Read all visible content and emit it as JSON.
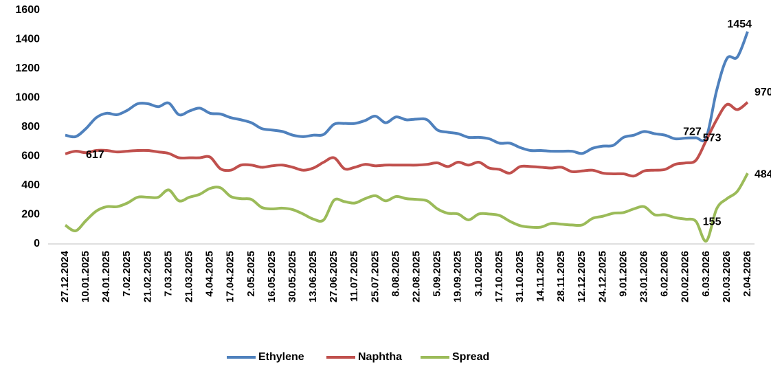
{
  "chart_data": {
    "type": "line",
    "categories": [
      "27.12.2024",
      null,
      "10.01.2025",
      null,
      "24.01.2025",
      null,
      "7.02.2025",
      null,
      "21.02.2025",
      null,
      "7.03.2025",
      null,
      "21.03.2025",
      null,
      "4.04.2025",
      null,
      "17.04.2025",
      null,
      "2.05.2025",
      null,
      "16.05.2025",
      null,
      "30.05.2025",
      null,
      "13.06.2025",
      null,
      "27.06.2025",
      null,
      "11.07.2025",
      null,
      "25.07.2025",
      null,
      "8.08.2025",
      null,
      "22.08.2025",
      null,
      "5.09.2025",
      null,
      "19.09.2025",
      null,
      "3.10.2025",
      null,
      "17.10.2025",
      null,
      "31.10.2025",
      null,
      "14.11.2025",
      null,
      "28.11.2025",
      null,
      "12.12.2025",
      null,
      "24.12.2025",
      null,
      "9.01.2026",
      null,
      "23.01.2026",
      null,
      "6.02.2026",
      null,
      "20.02.2026",
      null,
      "6.03.2026",
      null,
      "20.03.2026",
      null,
      "2.04.2026"
    ],
    "series": [
      {
        "name": "Ethylene",
        "color": "#4f81bd",
        "labeled": [
          61,
          66
        ],
        "values": [
          745,
          735,
          790,
          865,
          895,
          885,
          915,
          960,
          960,
          940,
          965,
          885,
          910,
          930,
          895,
          890,
          865,
          850,
          830,
          790,
          780,
          770,
          745,
          735,
          745,
          750,
          820,
          825,
          825,
          845,
          875,
          830,
          870,
          850,
          855,
          850,
          780,
          765,
          755,
          730,
          730,
          720,
          690,
          690,
          660,
          640,
          640,
          635,
          635,
          635,
          620,
          655,
          670,
          675,
          730,
          745,
          770,
          755,
          745,
          720,
          725,
          727,
          730,
          1050,
          1270,
          1280,
          1454
        ]
      },
      {
        "name": "Naphtha",
        "color": "#c0504d",
        "labeled": [
          0,
          61,
          66
        ],
        "values": [
          617,
          635,
          625,
          640,
          640,
          630,
          635,
          640,
          640,
          630,
          620,
          590,
          590,
          590,
          595,
          515,
          505,
          540,
          540,
          525,
          535,
          540,
          525,
          505,
          520,
          560,
          590,
          515,
          525,
          545,
          535,
          540,
          540,
          540,
          540,
          545,
          555,
          530,
          560,
          540,
          560,
          520,
          510,
          485,
          530,
          530,
          525,
          520,
          525,
          495,
          500,
          505,
          485,
          480,
          480,
          465,
          500,
          505,
          510,
          545,
          555,
          573,
          710,
          850,
          955,
          920,
          970
        ]
      },
      {
        "name": "Spread",
        "color": "#9bbb59",
        "labeled": [
          61,
          66
        ],
        "values": [
          128,
          90,
          160,
          225,
          255,
          255,
          280,
          320,
          320,
          320,
          370,
          295,
          320,
          340,
          380,
          385,
          325,
          310,
          305,
          250,
          240,
          245,
          235,
          205,
          170,
          165,
          300,
          290,
          280,
          310,
          330,
          295,
          325,
          310,
          305,
          295,
          240,
          210,
          205,
          165,
          205,
          205,
          195,
          155,
          125,
          115,
          115,
          140,
          135,
          130,
          130,
          175,
          190,
          210,
          215,
          240,
          255,
          200,
          200,
          180,
          170,
          155,
          20,
          240,
          310,
          360,
          484
        ]
      }
    ],
    "ylim": [
      0,
      1600
    ],
    "yticks": [
      0,
      200,
      400,
      600,
      800,
      1000,
      1200,
      1400,
      1600
    ],
    "grid": false,
    "legend": "bottom"
  }
}
